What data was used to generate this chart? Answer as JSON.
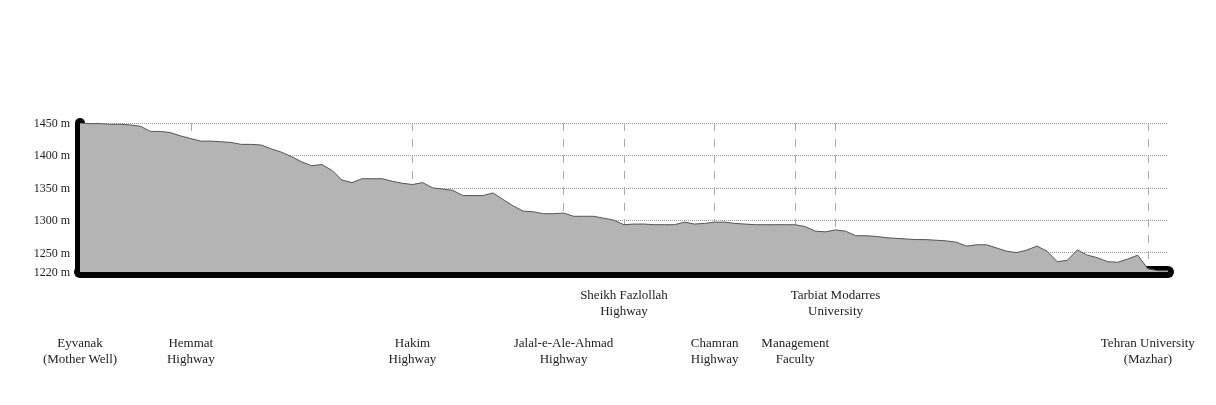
{
  "chart_data": {
    "type": "area",
    "categories": [
      "Eyvanak\n(Mother Well)",
      null,
      null,
      null,
      null,
      null,
      null,
      null,
      null,
      null,
      null,
      "Hemmat\nHighway",
      null,
      null,
      null,
      null,
      null,
      null,
      null,
      null,
      null,
      null,
      null,
      null,
      null,
      null,
      null,
      null,
      null,
      null,
      null,
      null,
      null,
      "Hakim\nHighway",
      null,
      null,
      null,
      null,
      null,
      null,
      null,
      null,
      null,
      null,
      null,
      null,
      null,
      null,
      "Jalal-e-Ale-Ahmad\nHighway",
      null,
      null,
      null,
      null,
      null,
      "Sheikh Fazlollah\nHighway",
      null,
      null,
      null,
      null,
      null,
      null,
      null,
      null,
      "Chamran\nHighway",
      null,
      null,
      null,
      null,
      null,
      null,
      null,
      "Management\nFaculty",
      null,
      null,
      null,
      "Tarbiat Modarres\nUniversity",
      null,
      null,
      null,
      null,
      null,
      null,
      null,
      null,
      null,
      null,
      null,
      null,
      null,
      null,
      null,
      null,
      null,
      null,
      null,
      null,
      null,
      null,
      null,
      null,
      null,
      null,
      null,
      null,
      null,
      null,
      "Tehran University\n(Mazhar)",
      null,
      null
    ],
    "values": [
      1450,
      1449,
      1449,
      1448,
      1448,
      1447,
      1445,
      1437,
      1437,
      1435,
      1430,
      1426,
      1422,
      1422,
      1421,
      1420,
      1417,
      1417,
      1416,
      1410,
      1405,
      1398,
      1390,
      1384,
      1386,
      1377,
      1362,
      1358,
      1364,
      1364,
      1364,
      1360,
      1357,
      1355,
      1358,
      1350,
      1348,
      1346,
      1338,
      1338,
      1338,
      1342,
      1332,
      1322,
      1314,
      1313,
      1310,
      1310,
      1311,
      1306,
      1306,
      1306,
      1303,
      1300,
      1293,
      1294,
      1294,
      1293,
      1293,
      1293,
      1297,
      1294,
      1295,
      1297,
      1297,
      1295,
      1294,
      1293,
      1293,
      1293,
      1293,
      1293,
      1290,
      1283,
      1282,
      1285,
      1283,
      1276,
      1276,
      1275,
      1273,
      1272,
      1271,
      1270,
      1270,
      1269,
      1268,
      1266,
      1260,
      1262,
      1262,
      1257,
      1252,
      1250,
      1254,
      1260,
      1252,
      1236,
      1238,
      1254,
      1246,
      1242,
      1236,
      1235,
      1240,
      1246,
      1225,
      1222,
      1222
    ],
    "color": "#b4b4b4",
    "ylim": [
      1220,
      1450
    ],
    "yticks": [
      {
        "value": 1220,
        "label": "1220 m"
      },
      {
        "value": 1250,
        "label": "1250 m"
      },
      {
        "value": 1300,
        "label": "1300 m"
      },
      {
        "value": 1350,
        "label": "1350 m"
      },
      {
        "value": 1400,
        "label": "1400 m"
      },
      {
        "value": 1450,
        "label": "1450 m"
      }
    ],
    "grid": true,
    "marker": "none"
  }
}
